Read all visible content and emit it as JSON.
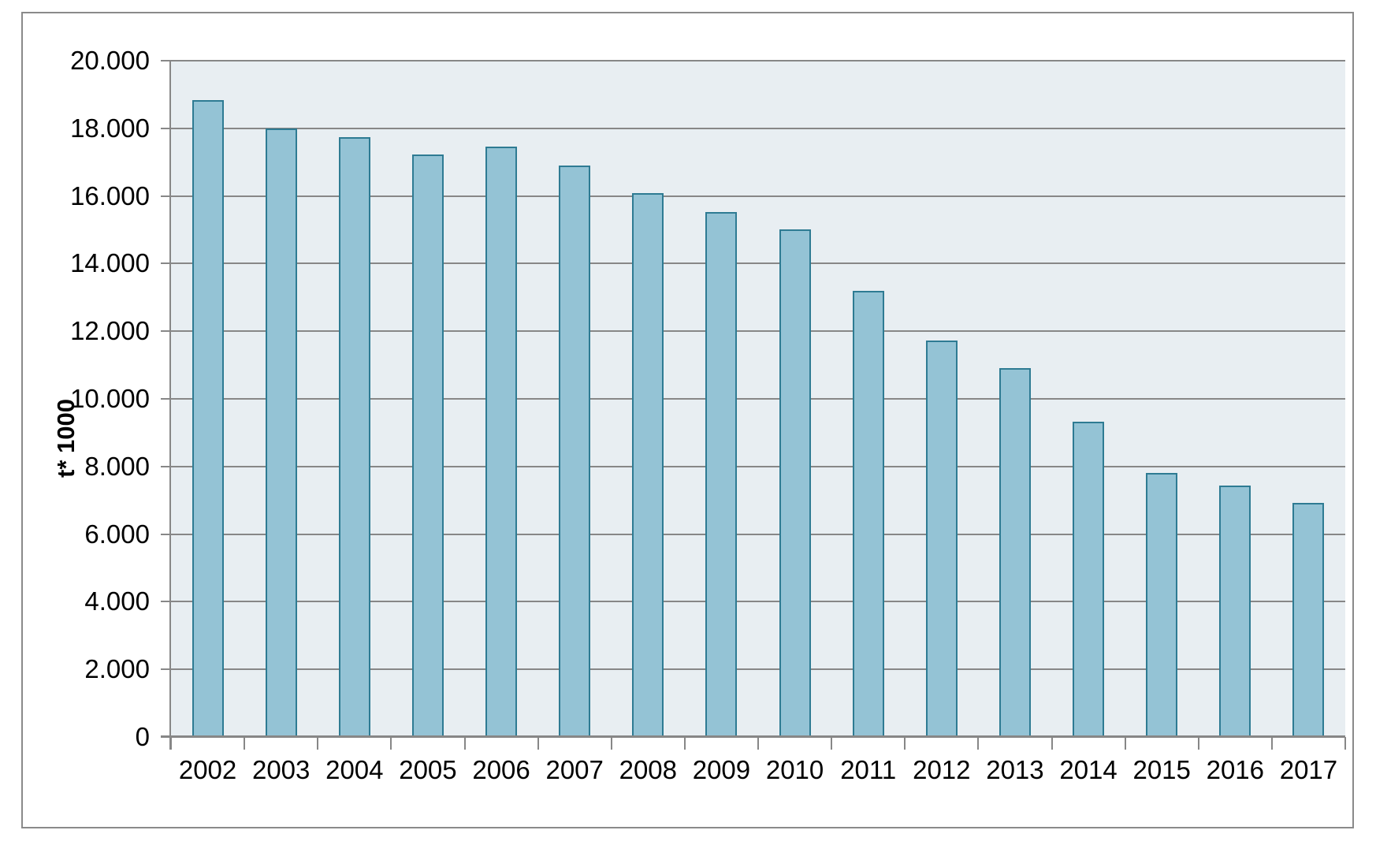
{
  "chart_data": {
    "type": "bar",
    "title": "",
    "categories": [
      "2002",
      "2003",
      "2004",
      "2005",
      "2006",
      "2007",
      "2008",
      "2009",
      "2010",
      "2011",
      "2012",
      "2013",
      "2014",
      "2015",
      "2016",
      "2017"
    ],
    "values": [
      18840,
      18000,
      17740,
      17230,
      17450,
      16900,
      16080,
      15530,
      15020,
      13200,
      11720,
      10920,
      9330,
      7810,
      7430,
      6920
    ],
    "xlabel": "",
    "ylabel": "t* 1000",
    "ylim": [
      0,
      20000
    ],
    "y_tick_step": 2000,
    "y_tick_labels": [
      "0",
      "2.000",
      "4.000",
      "6.000",
      "8.000",
      "10.000",
      "12.000",
      "14.000",
      "16.000",
      "18.000",
      "20.000"
    ],
    "grid": "horizontal",
    "legend": "none",
    "bar_color": "#94c3d5",
    "colors": {
      "bar_fill": "#94c3d5",
      "bar_border": "#2e7b93",
      "plot_bg": "#e8eef2",
      "gridline": "#878787",
      "axis": "#878787",
      "frame_border": "#8a8a8a",
      "text": "#000000",
      "page_bg": "#ffffff"
    }
  }
}
